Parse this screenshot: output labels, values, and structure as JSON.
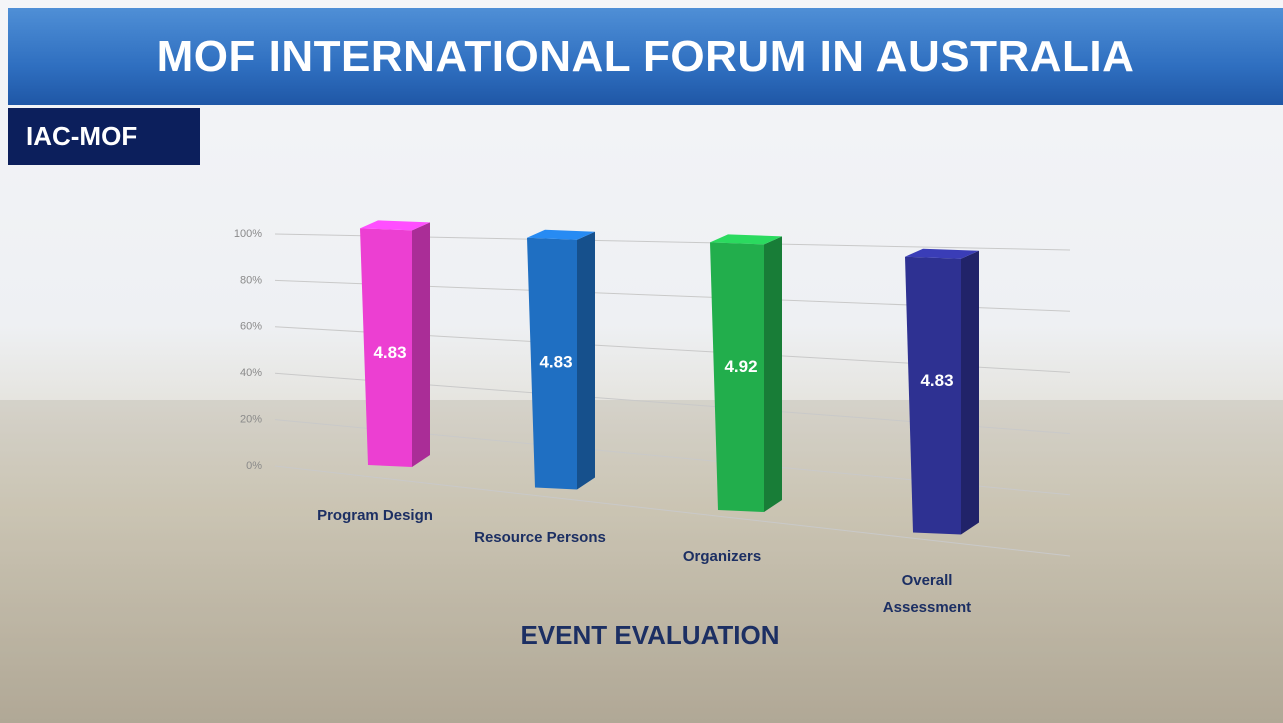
{
  "slide": {
    "title": "MOF INTERNATIONAL FORUM IN AUSTRALIA",
    "badge": "IAC-MOF"
  },
  "chart_data": {
    "type": "bar3d",
    "x_label": "EVENT EVALUATION",
    "categories": [
      "Program Design",
      "Resource Persons",
      "Organizers",
      "Overall Assessment"
    ],
    "values": [
      4.83,
      4.83,
      4.92,
      4.83
    ],
    "value_labels": [
      "4.83",
      "4.83",
      "4.92",
      "4.83"
    ],
    "colors": [
      "#ec3fd2",
      "#1f6fc2",
      "#22ae4c",
      "#2e3192"
    ],
    "ylim": [
      0,
      5
    ],
    "yticks": [
      {
        "value": 0,
        "label": "0%"
      },
      {
        "value": 1,
        "label": "20%"
      },
      {
        "value": 2,
        "label": "40%"
      },
      {
        "value": 3,
        "label": "60%"
      },
      {
        "value": 4,
        "label": "80%"
      },
      {
        "value": 5,
        "label": "100%"
      }
    ],
    "grid": true
  }
}
